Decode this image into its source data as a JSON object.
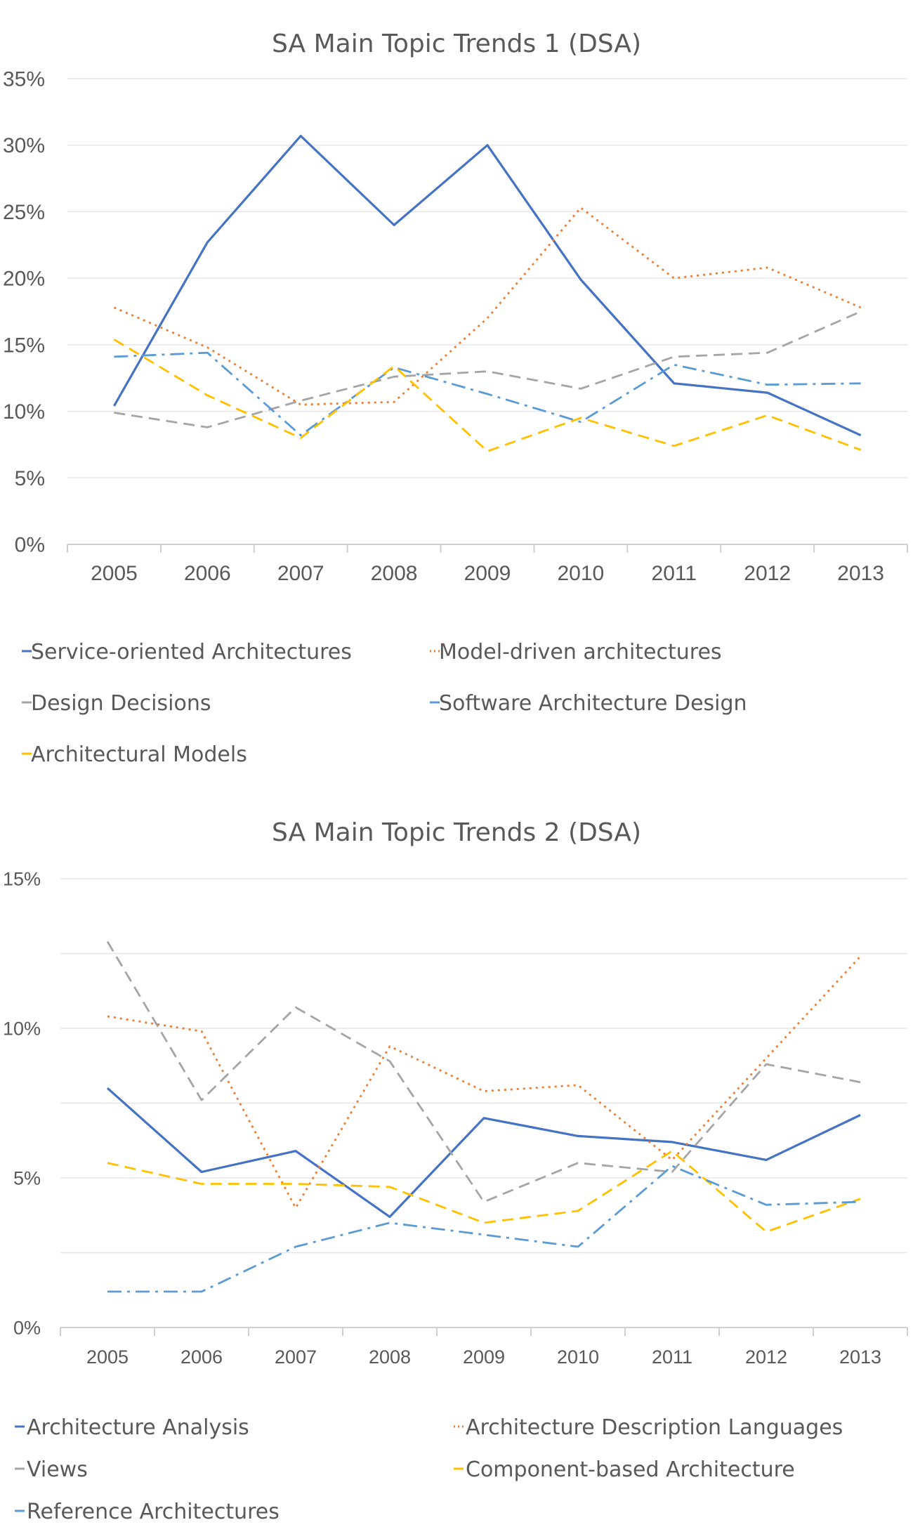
{
  "colors": {
    "blue": "#4472C4",
    "orange": "#ED7D31",
    "gray": "#A5A5A5",
    "lightblue": "#5B9BD5",
    "gold": "#FFC000",
    "grid": "#e6e6e6",
    "axis": "#d0d0d0",
    "text": "#595959"
  },
  "chart_data": [
    {
      "type": "line",
      "title": "SA  Main Topic Trends 1 (DSA)",
      "categories": [
        "2005",
        "2006",
        "2007",
        "2008",
        "2009",
        "2010",
        "2011",
        "2012",
        "2013"
      ],
      "yticks": [
        "0%",
        "5%",
        "10%",
        "15%",
        "20%",
        "25%",
        "30%",
        "35%"
      ],
      "ylim": [
        0,
        35
      ],
      "grid": true,
      "legend_position": "bottom",
      "series": [
        {
          "name": "Service-oriented Architectures",
          "color": "blue",
          "dash": "solid",
          "values": [
            10.4,
            22.7,
            30.7,
            24.0,
            30.0,
            19.9,
            12.1,
            11.4,
            8.2
          ]
        },
        {
          "name": "Model-driven architectures",
          "color": "orange",
          "dash": "dot",
          "values": [
            17.8,
            14.8,
            10.5,
            10.7,
            17.0,
            25.3,
            20.0,
            20.8,
            17.8
          ]
        },
        {
          "name": "Design Decisions",
          "color": "gray",
          "dash": "dash",
          "values": [
            9.9,
            8.8,
            10.8,
            12.6,
            13.0,
            11.7,
            14.1,
            14.4,
            17.5
          ]
        },
        {
          "name": "Software Architecture Design",
          "color": "lightblue",
          "dash": "dashdot",
          "values": [
            14.1,
            14.4,
            8.2,
            13.3,
            11.3,
            9.2,
            13.5,
            12.0,
            12.1
          ]
        },
        {
          "name": "Architectural Models",
          "color": "gold",
          "dash": "dash",
          "values": [
            15.4,
            11.2,
            8.0,
            13.4,
            7.0,
            9.5,
            7.4,
            9.7,
            7.1
          ]
        }
      ]
    },
    {
      "type": "line",
      "title": "SA  Main Topic Trends 2 (DSA)",
      "categories": [
        "2005",
        "2006",
        "2007",
        "2008",
        "2009",
        "2010",
        "2011",
        "2012",
        "2013"
      ],
      "yticks": [
        "0%",
        "",
        "5%",
        "",
        "10%",
        "",
        "15%"
      ],
      "ylim": [
        0,
        15
      ],
      "grid": true,
      "legend_position": "bottom",
      "series": [
        {
          "name": "Architecture Analysis",
          "color": "blue",
          "dash": "solid",
          "values": [
            8.0,
            5.2,
            5.9,
            3.7,
            7.0,
            6.4,
            6.2,
            5.6,
            7.1
          ]
        },
        {
          "name": "Architecture Description Languages",
          "color": "orange",
          "dash": "dot",
          "values": [
            10.4,
            9.9,
            4.0,
            9.4,
            7.9,
            8.1,
            5.6,
            9.0,
            12.4
          ]
        },
        {
          "name": "Views",
          "color": "gray",
          "dash": "dash",
          "values": [
            12.9,
            7.6,
            10.7,
            8.9,
            4.2,
            5.5,
            5.2,
            8.8,
            8.2
          ]
        },
        {
          "name": "Component-based Architecture",
          "color": "gold",
          "dash": "dash",
          "values": [
            5.5,
            4.8,
            4.8,
            4.7,
            3.5,
            3.9,
            5.9,
            3.2,
            4.3
          ]
        },
        {
          "name": "Reference Architectures",
          "color": "lightblue",
          "dash": "dashdot",
          "values": [
            1.2,
            1.2,
            2.7,
            3.5,
            3.1,
            2.7,
            5.4,
            4.1,
            4.2
          ]
        }
      ]
    }
  ]
}
